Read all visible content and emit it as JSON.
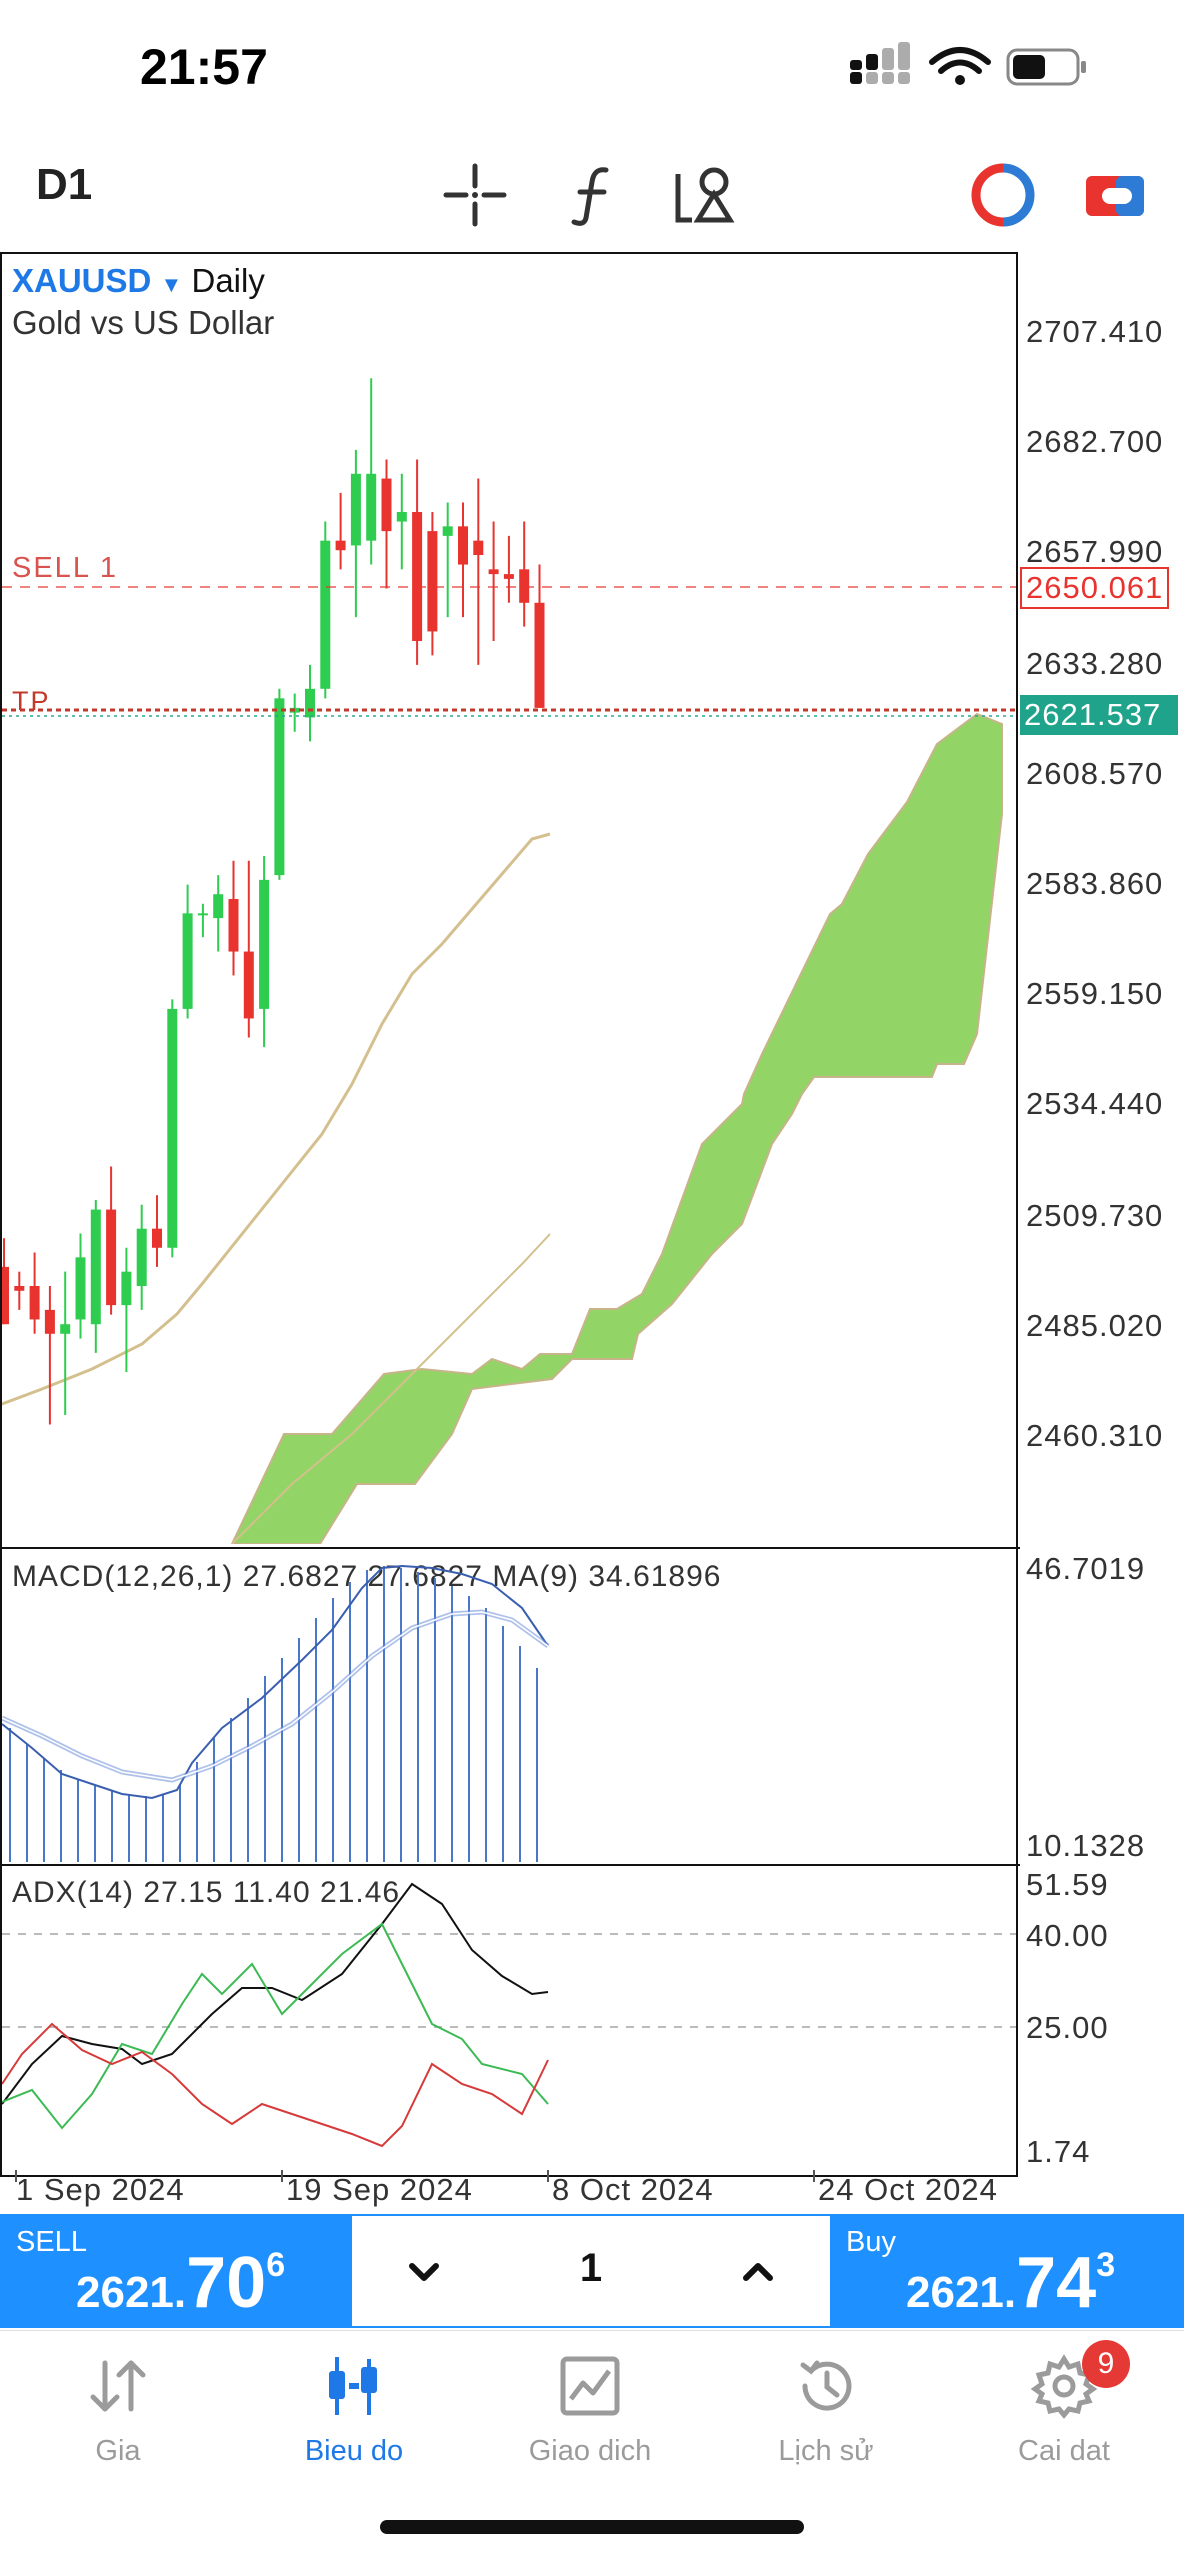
{
  "status_bar": {
    "time": "21:57"
  },
  "toolbar": {
    "timeframe": "D1"
  },
  "chart": {
    "symbol": "XAUUSD",
    "period": "Daily",
    "description": "Gold vs US Dollar",
    "price_axis": [
      "2707.410",
      "2682.700",
      "2657.990",
      "2633.280",
      "2608.570",
      "2583.860",
      "2559.150",
      "2534.440",
      "2509.730",
      "2485.020",
      "2460.310"
    ],
    "sell_level_label": "SELL 1",
    "sell_level_price": "2650.061",
    "tp_label": "TP",
    "current_price": "2621.537",
    "colors": {
      "bull": "#2ecc4f",
      "bear": "#e8332f",
      "cloud": "#92d465",
      "accent": "#1e78e6",
      "price_tag": "#1fa38a"
    }
  },
  "chart_data": {
    "type": "candlestick",
    "title": "XAUUSD Daily",
    "subtitle": "Gold vs US Dollar",
    "ylim": [
      2446,
      2716
    ],
    "x_ticks": [
      "1 Sep 2024",
      "19 Sep 2024",
      "8 Oct 2024",
      "24 Oct 2024"
    ],
    "candles": [
      {
        "o": 2504,
        "h": 2510,
        "l": 2492,
        "c": 2492
      },
      {
        "o": 2500,
        "h": 2503,
        "l": 2495,
        "c": 2499
      },
      {
        "o": 2500,
        "h": 2507,
        "l": 2490,
        "c": 2493
      },
      {
        "o": 2495,
        "h": 2500,
        "l": 2471,
        "c": 2490
      },
      {
        "o": 2490,
        "h": 2503,
        "l": 2473,
        "c": 2492
      },
      {
        "o": 2493,
        "h": 2511,
        "l": 2489,
        "c": 2506
      },
      {
        "o": 2492,
        "h": 2518,
        "l": 2486,
        "c": 2516
      },
      {
        "o": 2516,
        "h": 2525,
        "l": 2494,
        "c": 2496
      },
      {
        "o": 2496,
        "h": 2508,
        "l": 2482,
        "c": 2503
      },
      {
        "o": 2500,
        "h": 2517,
        "l": 2495,
        "c": 2512
      },
      {
        "o": 2512,
        "h": 2519,
        "l": 2504,
        "c": 2508
      },
      {
        "o": 2508,
        "h": 2560,
        "l": 2506,
        "c": 2558
      },
      {
        "o": 2558,
        "h": 2584,
        "l": 2556,
        "c": 2578
      },
      {
        "o": 2578,
        "h": 2580,
        "l": 2573,
        "c": 2578
      },
      {
        "o": 2577,
        "h": 2586,
        "l": 2570,
        "c": 2582
      },
      {
        "o": 2581,
        "h": 2589,
        "l": 2565,
        "c": 2570
      },
      {
        "o": 2570,
        "h": 2589,
        "l": 2552,
        "c": 2556
      },
      {
        "o": 2558,
        "h": 2590,
        "l": 2550,
        "c": 2585
      },
      {
        "o": 2586,
        "h": 2625,
        "l": 2585,
        "c": 2623
      },
      {
        "o": 2620,
        "h": 2624,
        "l": 2616,
        "c": 2621
      },
      {
        "o": 2619,
        "h": 2630,
        "l": 2614,
        "c": 2625
      },
      {
        "o": 2625,
        "h": 2660,
        "l": 2623,
        "c": 2656
      },
      {
        "o": 2656,
        "h": 2666,
        "l": 2650,
        "c": 2654
      },
      {
        "o": 2655,
        "h": 2675,
        "l": 2640,
        "c": 2670
      },
      {
        "o": 2656,
        "h": 2690,
        "l": 2651,
        "c": 2670
      },
      {
        "o": 2669,
        "h": 2673,
        "l": 2646,
        "c": 2658
      },
      {
        "o": 2660,
        "h": 2670,
        "l": 2650,
        "c": 2662
      },
      {
        "o": 2662,
        "h": 2673,
        "l": 2630,
        "c": 2635
      },
      {
        "o": 2658,
        "h": 2662,
        "l": 2632,
        "c": 2637
      },
      {
        "o": 2657,
        "h": 2664,
        "l": 2640,
        "c": 2659
      },
      {
        "o": 2659,
        "h": 2664,
        "l": 2640,
        "c": 2651
      },
      {
        "o": 2656,
        "h": 2669,
        "l": 2630,
        "c": 2653
      },
      {
        "o": 2650,
        "h": 2660,
        "l": 2635,
        "c": 2649
      },
      {
        "o": 2649,
        "h": 2657,
        "l": 2643,
        "c": 2648
      },
      {
        "o": 2650,
        "h": 2660,
        "l": 2638,
        "c": 2643
      },
      {
        "o": 2643,
        "h": 2651,
        "l": 2621,
        "c": 2621
      }
    ],
    "macd": {
      "label": "MACD(12,26,1)",
      "values": [
        "27.6827",
        "27.6827"
      ],
      "ma_label": "MA(9)",
      "ma_value": "34.61896",
      "axis": [
        "46.7019",
        "10.1328"
      ]
    },
    "adx": {
      "label": "ADX(14)",
      "values": [
        "27.15",
        "11.40",
        "21.46"
      ],
      "axis": [
        "51.59",
        "40.00",
        "25.00",
        "1.74"
      ]
    }
  },
  "trade": {
    "sell_label": "SELL",
    "sell_price_prefix": "2621.",
    "sell_price_big": "70",
    "sell_price_sup": "6",
    "buy_label": "Buy",
    "buy_price_prefix": "2621.",
    "buy_price_big": "74",
    "buy_price_sup": "3",
    "volume": "1"
  },
  "nav": {
    "items": [
      {
        "label": "Gia"
      },
      {
        "label": "Bieu do"
      },
      {
        "label": "Giao dich"
      },
      {
        "label": "Lịch sử"
      },
      {
        "label": "Cai dat"
      }
    ],
    "badge": "9"
  }
}
